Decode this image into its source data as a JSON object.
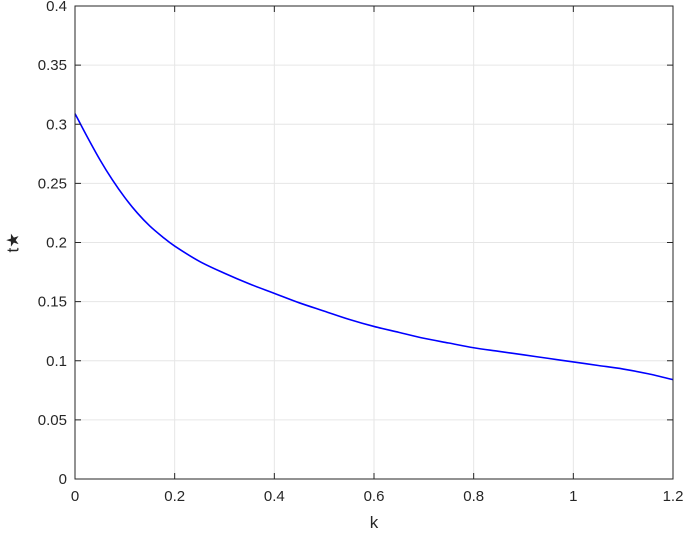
{
  "chart_data": {
    "type": "line",
    "title": "",
    "xlabel": "k",
    "ylabel": "t★",
    "xlim": [
      0,
      1.2
    ],
    "ylim": [
      0,
      0.4
    ],
    "grid": true,
    "xticks": [
      0,
      0.2,
      0.4,
      0.6,
      0.8,
      1,
      1.2
    ],
    "xtick_labels": [
      "0",
      "0.2",
      "0.4",
      "0.6",
      "0.8",
      "1",
      "1.2"
    ],
    "yticks": [
      0,
      0.05,
      0.1,
      0.15,
      0.2,
      0.25,
      0.3,
      0.35,
      0.4
    ],
    "ytick_labels": [
      "0",
      "0.05",
      "0.1",
      "0.15",
      "0.2",
      "0.25",
      "0.3",
      "0.35",
      "0.4"
    ],
    "series": [
      {
        "color": "#0000ff",
        "x": [
          0,
          0.025,
          0.05,
          0.075,
          0.1,
          0.125,
          0.15,
          0.175,
          0.2,
          0.25,
          0.3,
          0.35,
          0.4,
          0.45,
          0.5,
          0.55,
          0.6,
          0.65,
          0.7,
          0.75,
          0.8,
          0.85,
          0.9,
          0.95,
          1.0,
          1.05,
          1.1,
          1.15,
          1.2
        ],
        "y": [
          0.309,
          0.289,
          0.27,
          0.253,
          0.238,
          0.225,
          0.214,
          0.205,
          0.197,
          0.184,
          0.174,
          0.165,
          0.157,
          0.149,
          0.142,
          0.135,
          0.129,
          0.124,
          0.119,
          0.115,
          0.111,
          0.108,
          0.105,
          0.102,
          0.099,
          0.096,
          0.093,
          0.089,
          0.084
        ]
      }
    ]
  }
}
